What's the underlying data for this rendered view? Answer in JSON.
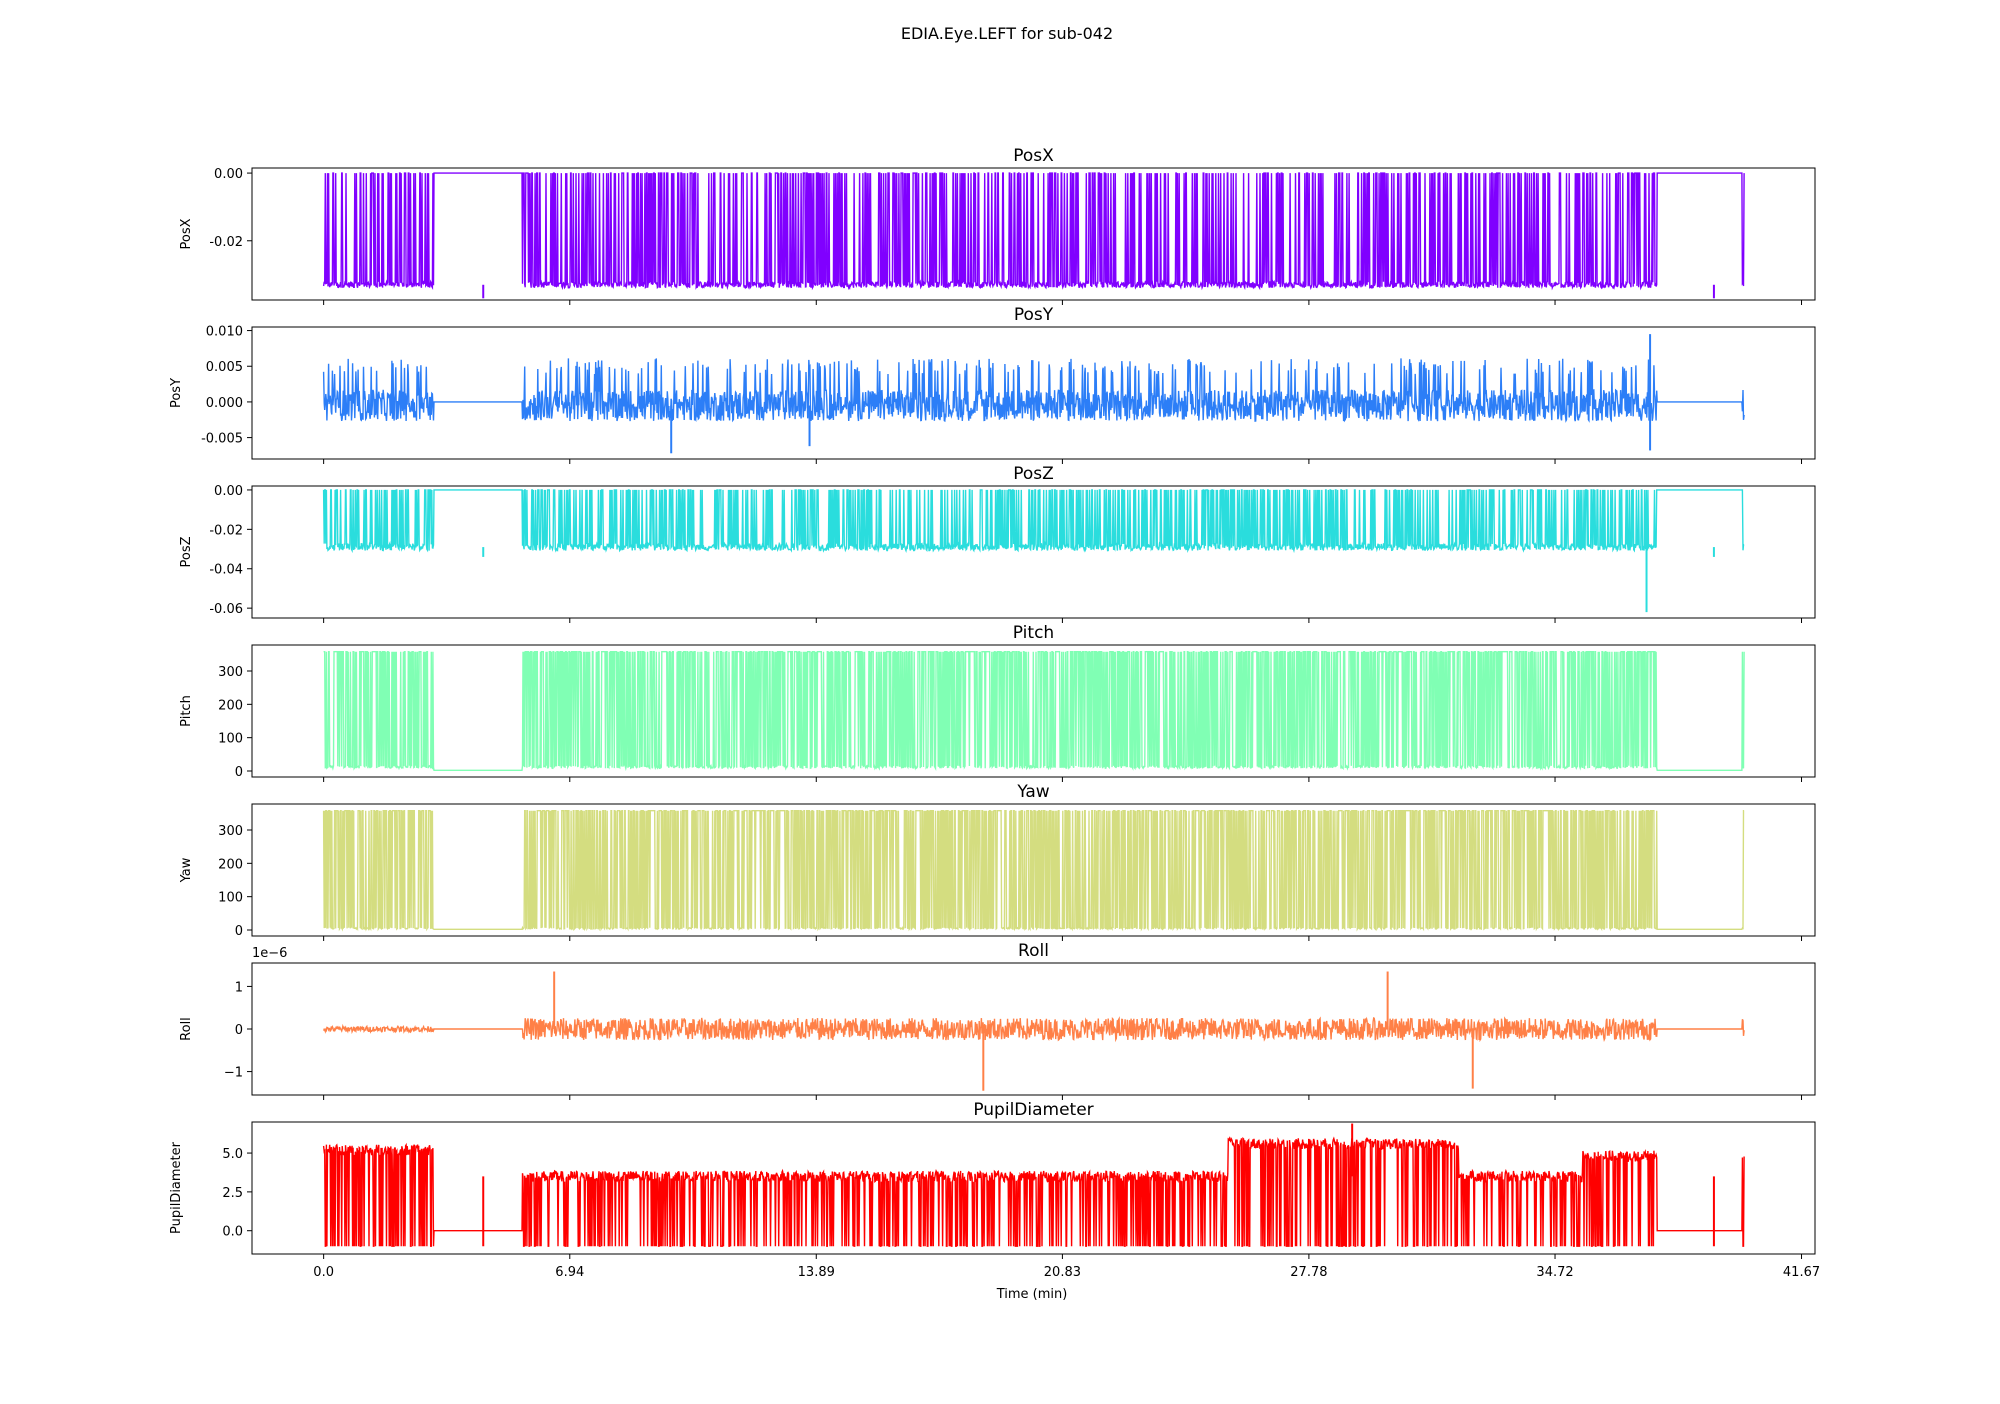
{
  "figure": {
    "suptitle": "EDIA.Eye.LEFT for sub-042",
    "xlabel": "Time (min)",
    "xticks": [
      0.0,
      6.94,
      13.89,
      20.83,
      27.78,
      34.72,
      41.67
    ],
    "xtick_labels": [
      "0.0",
      "6.94",
      "13.89",
      "20.83",
      "27.78",
      "34.72",
      "41.67"
    ]
  },
  "chart_data": [
    {
      "type": "line",
      "title": "PosX",
      "ylabel": "PosX",
      "color": "#8000ff",
      "ylim": [
        -0.0375,
        0.0015
      ],
      "yticks": [
        0.0,
        -0.02
      ],
      "ytick_labels": [
        "0.00",
        "-0.02"
      ],
      "x_range": [
        0,
        40.05
      ],
      "pattern": "dropout",
      "base": -0.033,
      "noise": 0.0009,
      "alt": 0.0,
      "spikes": [
        {
          "x": 4.5,
          "y": -0.037
        },
        {
          "x": 39.2,
          "y": -0.037
        }
      ],
      "gaps": [
        {
          "from": 3.1,
          "to": 5.6,
          "y": 0.0
        },
        {
          "from": 37.6,
          "to": 40.0,
          "y": 0.0
        }
      ]
    },
    {
      "type": "line",
      "title": "PosY",
      "ylabel": "PosY",
      "color": "#2c7ef7",
      "ylim": [
        -0.008,
        0.0105
      ],
      "yticks": [
        0.01,
        0.005,
        0.0,
        -0.005
      ],
      "ytick_labels": [
        "0.010",
        "0.005",
        "0.000",
        "-0.005"
      ],
      "x_range": [
        0,
        40.05
      ],
      "pattern": "noise",
      "base": -0.0005,
      "noise": 0.0022,
      "alt": 0.005,
      "spikes": [
        {
          "x": 37.4,
          "y": 0.0095
        },
        {
          "x": 37.4,
          "y": -0.0068
        },
        {
          "x": 9.8,
          "y": -0.0072
        },
        {
          "x": 13.7,
          "y": -0.0062
        }
      ],
      "gaps": [
        {
          "from": 3.1,
          "to": 5.6,
          "y": 0.0
        },
        {
          "from": 37.6,
          "to": 40.0,
          "y": 0.0
        }
      ]
    },
    {
      "type": "line",
      "title": "PosZ",
      "ylabel": "PosZ",
      "color": "#2adddd",
      "ylim": [
        -0.065,
        0.002
      ],
      "yticks": [
        0.0,
        -0.02,
        -0.04,
        -0.06
      ],
      "ytick_labels": [
        "0.00",
        "-0.02",
        "-0.04",
        "-0.06"
      ],
      "x_range": [
        0,
        40.05
      ],
      "pattern": "dropout",
      "base": -0.029,
      "noise": 0.0018,
      "alt": 0.0,
      "spikes": [
        {
          "x": 37.3,
          "y": -0.062
        },
        {
          "x": 4.5,
          "y": -0.034
        },
        {
          "x": 39.2,
          "y": -0.034
        }
      ],
      "gaps": [
        {
          "from": 3.1,
          "to": 5.6,
          "y": 0.0
        },
        {
          "from": 37.6,
          "to": 40.0,
          "y": 0.0
        }
      ]
    },
    {
      "type": "line",
      "title": "Pitch",
      "ylabel": "Pitch",
      "color": "#80ffb4",
      "ylim": [
        -18,
        378
      ],
      "yticks": [
        0,
        100,
        200,
        300
      ],
      "ytick_labels": [
        "0",
        "100",
        "200",
        "300"
      ],
      "x_range": [
        0,
        40.05
      ],
      "pattern": "wrap",
      "base": 8,
      "noise": 8,
      "alt": 358,
      "spikes": [],
      "gaps": [
        {
          "from": 3.1,
          "to": 5.6,
          "y": 2
        },
        {
          "from": 37.6,
          "to": 40.0,
          "y": 2
        }
      ]
    },
    {
      "type": "line",
      "title": "Yaw",
      "ylabel": "Yaw",
      "color": "#d4dd80",
      "ylim": [
        -18,
        378
      ],
      "yticks": [
        0,
        100,
        200,
        300
      ],
      "ytick_labels": [
        "0",
        "100",
        "200",
        "300"
      ],
      "x_range": [
        0,
        40.05
      ],
      "pattern": "wrap",
      "base": 3,
      "noise": 4,
      "alt": 358,
      "spikes": [],
      "gaps": [
        {
          "from": 3.1,
          "to": 5.6,
          "y": 2
        },
        {
          "from": 37.6,
          "to": 40.0,
          "y": 2
        }
      ]
    },
    {
      "type": "line",
      "title": "Roll",
      "ylabel": "Roll",
      "color": "#ff8047",
      "ylim": [
        -1.55e-06,
        1.55e-06
      ],
      "yticks": [
        1e-06,
        0,
        -1e-06
      ],
      "ytick_labels": [
        "1",
        "0",
        "−1"
      ],
      "offset_label": "1e−6",
      "x_range": [
        0,
        40.05
      ],
      "pattern": "noise",
      "base": 0.0,
      "noise": 2.6e-07,
      "alt": 0.0,
      "spikes": [
        {
          "x": 6.5,
          "y": 1.35e-06
        },
        {
          "x": 18.6,
          "y": -1.45e-06
        },
        {
          "x": 30.0,
          "y": 1.35e-06
        },
        {
          "x": 32.4,
          "y": -1.4e-06
        }
      ],
      "gaps": [
        {
          "from": 3.1,
          "to": 5.6,
          "y": 0.0
        },
        {
          "from": 37.6,
          "to": 40.0,
          "y": 0.0
        }
      ]
    },
    {
      "type": "line",
      "title": "PupilDiameter",
      "ylabel": "PupilDiameter",
      "color": "#ff0000",
      "ylim": [
        -1.5,
        7.0
      ],
      "yticks": [
        5.0,
        2.5,
        0.0
      ],
      "ytick_labels": [
        "5.0",
        "2.5",
        "0.0"
      ],
      "x_range": [
        0,
        40.05
      ],
      "pattern": "pupil",
      "base": 3.5,
      "noise": 0.35,
      "alt": -1.0,
      "spikes": [
        {
          "x": 29.0,
          "y": 6.9
        },
        {
          "x": 4.5,
          "y": -1.0
        },
        {
          "x": 39.2,
          "y": -1.0
        }
      ],
      "gaps": [
        {
          "from": 3.1,
          "to": 5.6,
          "y": 0.0
        },
        {
          "from": 37.6,
          "to": 40.0,
          "y": 0.0
        }
      ]
    }
  ]
}
